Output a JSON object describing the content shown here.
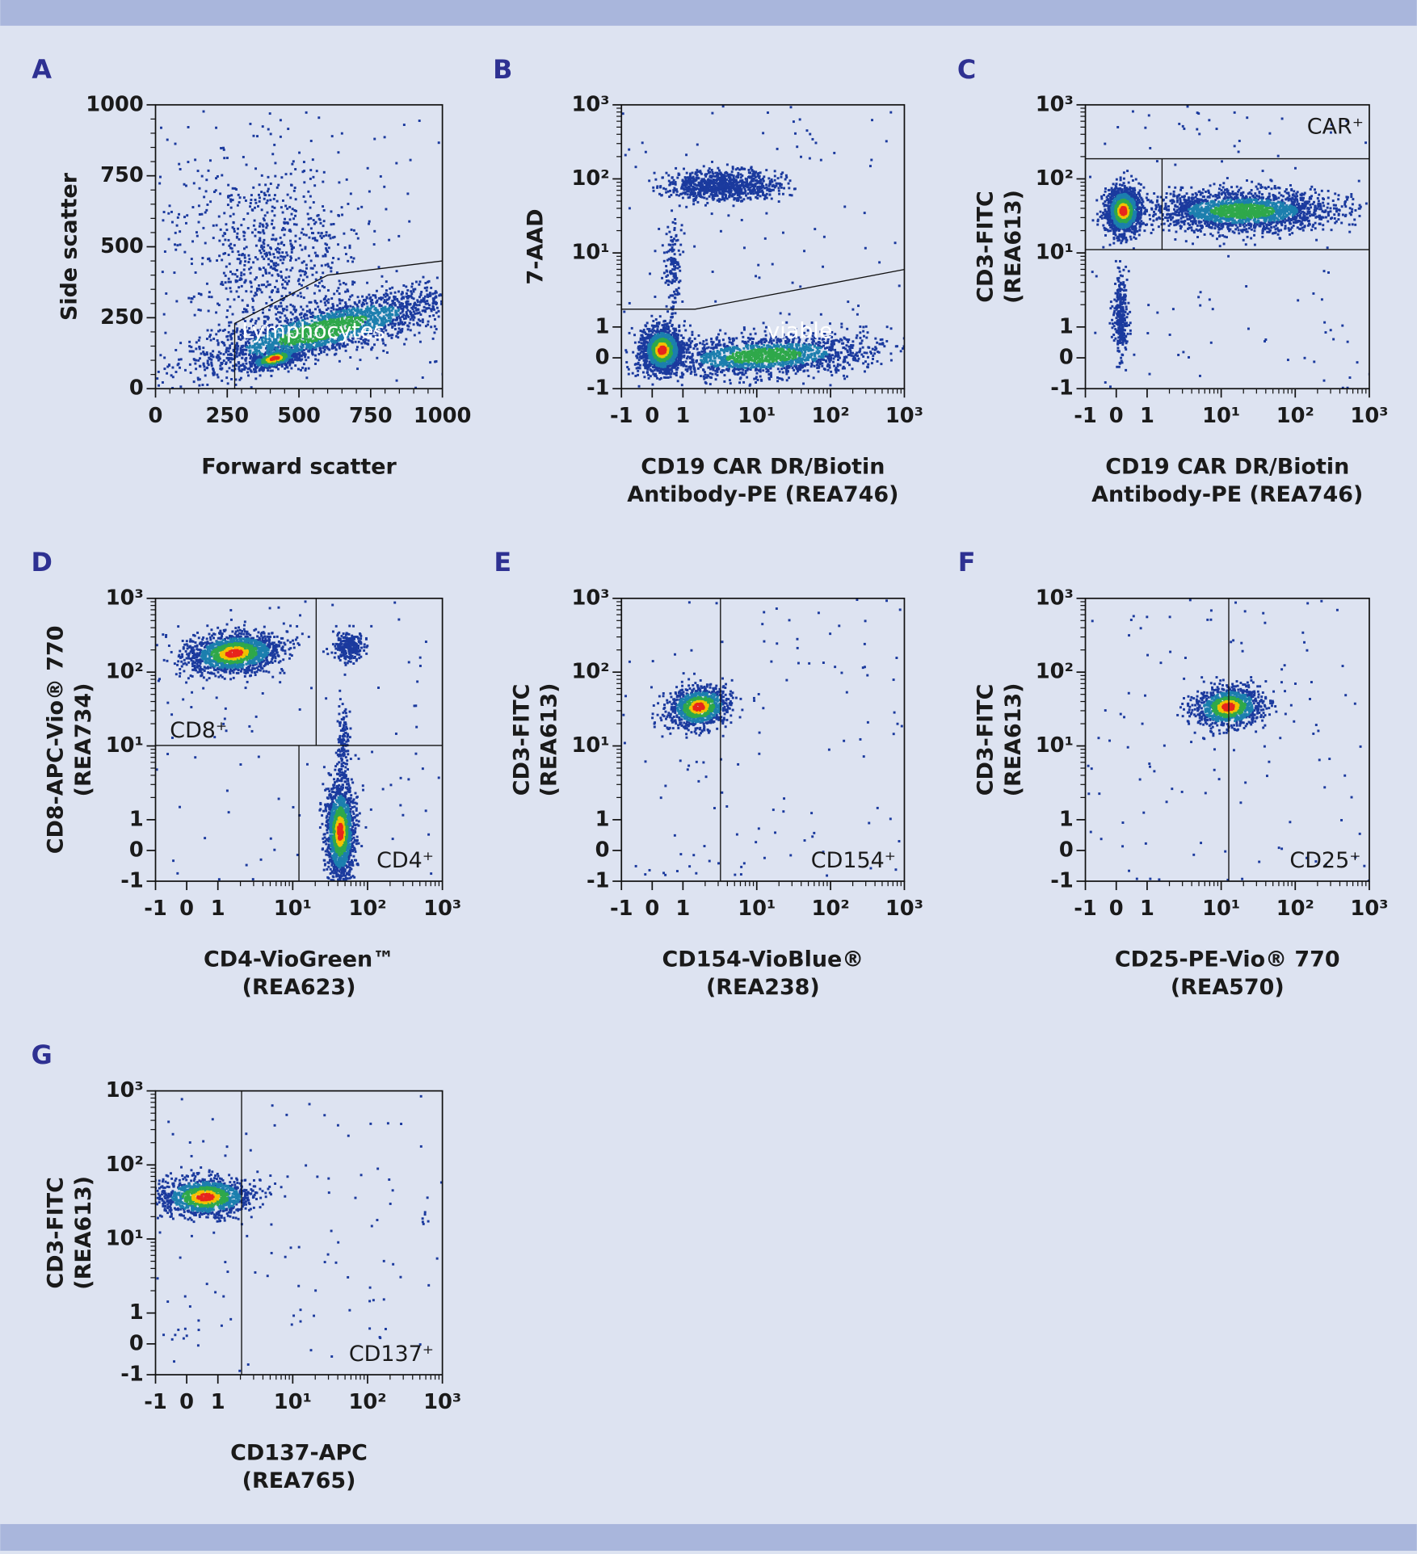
{
  "chart_data": [
    {
      "type": "scatter",
      "panel": "A",
      "xlabel": [
        "Forward scatter"
      ],
      "ylabel": [
        "Side scatter"
      ],
      "xscale": "linear",
      "yscale": "linear",
      "xlim": [
        0,
        1000
      ],
      "ylim": [
        0,
        1000
      ],
      "xticks": [
        0,
        250,
        500,
        750,
        1000
      ],
      "yticks": [
        0,
        250,
        500,
        750,
        1000
      ],
      "gate_labels": [
        "Lymphocytes"
      ]
    },
    {
      "type": "scatter",
      "panel": "B",
      "xlabel": [
        "CD19 CAR DR/Biotin",
        "Antibody-PE (REA746)"
      ],
      "ylabel": [
        "7-AAD"
      ],
      "xscale": "biexponential",
      "yscale": "biexponential",
      "xlim": [
        -1,
        1000
      ],
      "ylim": [
        -1,
        1000
      ],
      "xticks": [
        -1,
        0,
        1,
        {
          "value": 10,
          "label": "10¹"
        },
        {
          "value": 100,
          "label": "10²"
        },
        {
          "value": 1000,
          "label": "10³"
        }
      ],
      "yticks": [
        -1,
        0,
        1,
        {
          "value": 10,
          "label": "10¹"
        },
        {
          "value": 100,
          "label": "10²"
        },
        {
          "value": 1000,
          "label": "10³"
        }
      ],
      "gate_labels": [
        "viable"
      ]
    },
    {
      "type": "scatter",
      "panel": "C",
      "xlabel": [
        "CD19 CAR DR/Biotin",
        "Antibody-PE (REA746)"
      ],
      "ylabel": [
        "CD3-FITC",
        "(REA613)"
      ],
      "xscale": "biexponential",
      "yscale": "biexponential",
      "xlim": [
        -1,
        1000
      ],
      "ylim": [
        -1,
        1000
      ],
      "xticks": [
        -1,
        0,
        1,
        {
          "value": 10,
          "label": "10¹"
        },
        {
          "value": 100,
          "label": "10²"
        },
        {
          "value": 1000,
          "label": "10³"
        }
      ],
      "yticks": [
        -1,
        0,
        1,
        {
          "value": 10,
          "label": "10¹"
        },
        {
          "value": 100,
          "label": "10²"
        },
        {
          "value": 1000,
          "label": "10³"
        }
      ],
      "gate_labels": [
        "CAR⁺"
      ]
    },
    {
      "type": "scatter",
      "panel": "D",
      "xlabel": [
        "CD4-VioGreen™",
        "(REA623)"
      ],
      "ylabel": [
        "CD8-APC-Vio® 770",
        "(REA734)"
      ],
      "xscale": "biexponential",
      "yscale": "biexponential",
      "xlim": [
        -1,
        1000
      ],
      "ylim": [
        -1,
        1000
      ],
      "xticks": [
        -1,
        0,
        1,
        {
          "value": 10,
          "label": "10¹"
        },
        {
          "value": 100,
          "label": "10²"
        },
        {
          "value": 1000,
          "label": "10³"
        }
      ],
      "yticks": [
        -1,
        0,
        1,
        {
          "value": 10,
          "label": "10¹"
        },
        {
          "value": 100,
          "label": "10²"
        },
        {
          "value": 1000,
          "label": "10³"
        }
      ],
      "gate_labels": [
        "CD8⁺",
        "CD4⁺"
      ]
    },
    {
      "type": "scatter",
      "panel": "E",
      "xlabel": [
        "CD154-VioBlue®",
        "(REA238)"
      ],
      "ylabel": [
        "CD3-FITC",
        "(REA613)"
      ],
      "xscale": "biexponential",
      "yscale": "biexponential",
      "xlim": [
        -1,
        1000
      ],
      "ylim": [
        -1,
        1000
      ],
      "xticks": [
        -1,
        0,
        1,
        {
          "value": 10,
          "label": "10¹"
        },
        {
          "value": 100,
          "label": "10²"
        },
        {
          "value": 1000,
          "label": "10³"
        }
      ],
      "yticks": [
        -1,
        0,
        1,
        {
          "value": 10,
          "label": "10¹"
        },
        {
          "value": 100,
          "label": "10²"
        },
        {
          "value": 1000,
          "label": "10³"
        }
      ],
      "gate_labels": [
        "CD154⁺"
      ]
    },
    {
      "type": "scatter",
      "panel": "F",
      "xlabel": [
        "CD25-PE-Vio® 770",
        "(REA570)"
      ],
      "ylabel": [
        "CD3-FITC",
        "(REA613)"
      ],
      "xscale": "biexponential",
      "yscale": "biexponential",
      "xlim": [
        -1,
        1000
      ],
      "ylim": [
        -1,
        1000
      ],
      "xticks": [
        -1,
        0,
        1,
        {
          "value": 10,
          "label": "10¹"
        },
        {
          "value": 100,
          "label": "10²"
        },
        {
          "value": 1000,
          "label": "10³"
        }
      ],
      "yticks": [
        -1,
        0,
        1,
        {
          "value": 10,
          "label": "10¹"
        },
        {
          "value": 100,
          "label": "10²"
        },
        {
          "value": 1000,
          "label": "10³"
        }
      ],
      "gate_labels": [
        "CD25⁺"
      ]
    },
    {
      "type": "scatter",
      "panel": "G",
      "xlabel": [
        "CD137-APC",
        "(REA765)"
      ],
      "ylabel": [
        "CD3-FITC",
        "(REA613)"
      ],
      "xscale": "biexponential",
      "yscale": "biexponential",
      "xlim": [
        -1,
        1000
      ],
      "ylim": [
        -1,
        1000
      ],
      "xticks": [
        -1,
        0,
        1,
        {
          "value": 10,
          "label": "10¹"
        },
        {
          "value": 100,
          "label": "10²"
        },
        {
          "value": 1000,
          "label": "10³"
        }
      ],
      "yticks": [
        -1,
        0,
        1,
        {
          "value": 10,
          "label": "10¹"
        },
        {
          "value": 100,
          "label": "10²"
        },
        {
          "value": 1000,
          "label": "10³"
        }
      ],
      "gate_labels": [
        "CD137⁺"
      ]
    }
  ]
}
